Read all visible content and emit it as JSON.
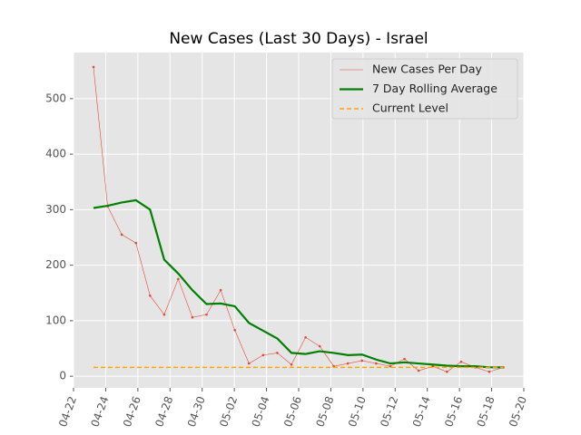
{
  "chart_data": {
    "type": "line",
    "title": "New Cases (Last 30 Days) - Israel",
    "x": [
      114.24,
      115.12,
      116.0,
      116.88,
      117.76,
      118.64,
      119.51,
      120.39,
      121.27,
      122.15,
      123.03,
      123.91,
      124.79,
      125.67,
      126.55,
      127.43,
      128.31,
      129.18,
      130.06,
      130.94,
      131.82,
      132.7,
      133.58,
      134.46,
      135.34,
      136.22,
      137.1,
      137.98,
      138.85,
      139.73
    ],
    "series": [
      {
        "name": "New Cases Per Day",
        "color": "#e24a33",
        "style": "thin-markers",
        "values": [
          557,
          306,
          255,
          240,
          145,
          111,
          175,
          106,
          111,
          155,
          83,
          23,
          38,
          42,
          21,
          70,
          54,
          18,
          23,
          28,
          23,
          18,
          31,
          10,
          18,
          8,
          26,
          16,
          8,
          16
        ]
      },
      {
        "name": "7 Day Rolling Average",
        "color": "#008000",
        "style": "thick",
        "values": [
          303,
          307,
          313,
          317,
          300,
          210,
          185,
          155,
          130,
          131,
          126,
          96,
          82,
          68,
          42,
          40,
          45,
          42,
          38,
          39,
          30,
          23,
          25,
          23,
          21,
          19,
          18,
          18,
          16,
          16
        ]
      },
      {
        "name": "Current Level",
        "color": "#ffa500",
        "style": "dashed",
        "level": 16
      }
    ],
    "xlim": [
      113,
      141
    ],
    "xticks": [
      {
        "value": 113,
        "label": "04-22"
      },
      {
        "value": 115,
        "label": "04-24"
      },
      {
        "value": 117,
        "label": "04-26"
      },
      {
        "value": 119,
        "label": "04-28"
      },
      {
        "value": 121,
        "label": "04-30"
      },
      {
        "value": 123,
        "label": "05-02"
      },
      {
        "value": 125,
        "label": "05-04"
      },
      {
        "value": 127,
        "label": "05-06"
      },
      {
        "value": 129,
        "label": "05-08"
      },
      {
        "value": 131,
        "label": "05-10"
      },
      {
        "value": 133,
        "label": "05-12"
      },
      {
        "value": 135,
        "label": "05-14"
      },
      {
        "value": 137,
        "label": "05-16"
      },
      {
        "value": 139,
        "label": "05-18"
      },
      {
        "value": 141,
        "label": "05-20"
      }
    ],
    "ylim": [
      -21,
      583
    ],
    "yticks": [
      0,
      100,
      200,
      300,
      400,
      500
    ],
    "grid": true,
    "legend": "upper-right"
  }
}
